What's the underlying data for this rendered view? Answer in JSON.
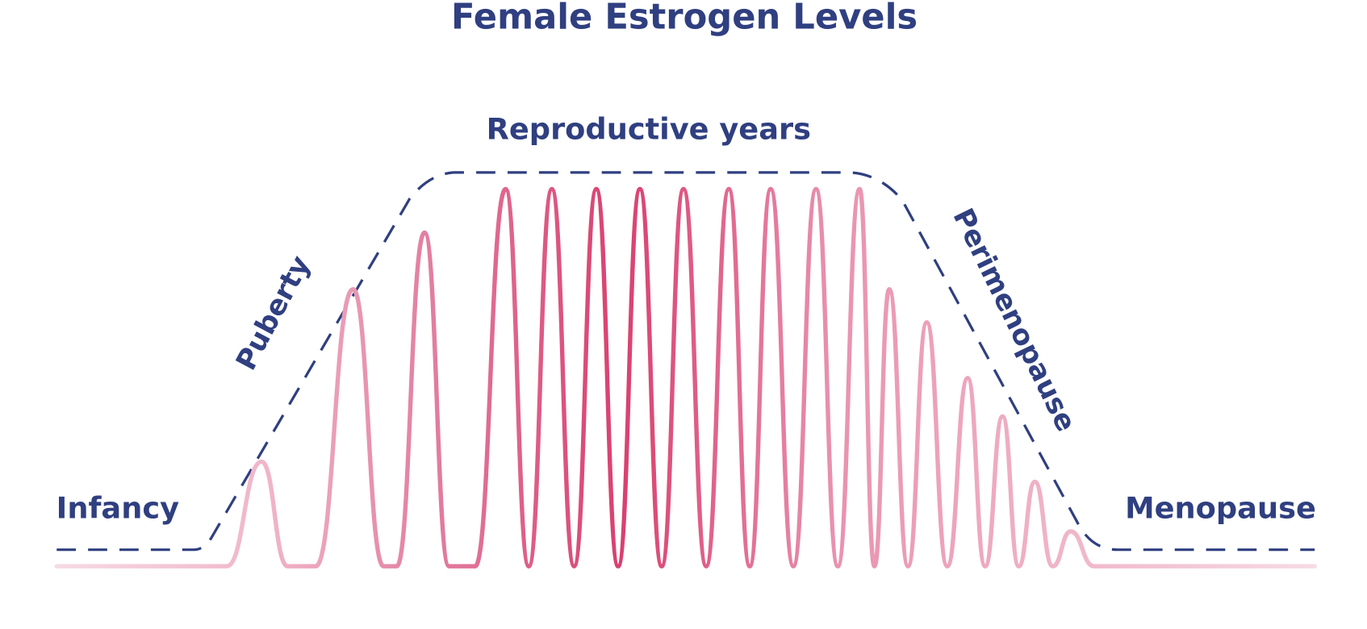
{
  "header": {
    "title": "Female Estrogen Levels"
  },
  "labels": {
    "reproductive": "Reproductive years",
    "puberty": "Puberty",
    "perimenopause": "Perimenopause",
    "infancy": "Infancy",
    "menopause": "Menopause"
  }
}
